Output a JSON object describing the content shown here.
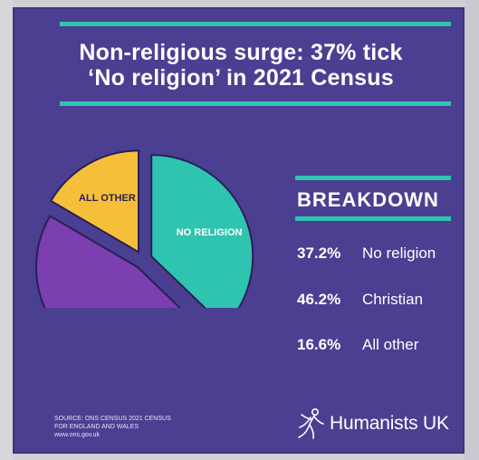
{
  "title_line1": "Non-religious surge: 37% tick",
  "title_line2": "‘No religion’ in 2021 Census",
  "colors": {
    "background": "#4b3f92",
    "accent": "#2ec4b0",
    "no_religion": "#2ec4b0",
    "christian": "#7b3fb0",
    "all_other": "#f5bf3a"
  },
  "chart_data": {
    "type": "pie",
    "title": "Non-religious surge: 37% tick ‘No religion’ in 2021 Census",
    "slices": [
      {
        "label": "NO RELIGION",
        "value": 37.2,
        "color": "#2ec4b0"
      },
      {
        "label": "CHRISTIAN",
        "value": 46.2,
        "color": "#7b3fb0"
      },
      {
        "label": "ALL OTHER",
        "value": 16.6,
        "color": "#f5bf3a"
      }
    ]
  },
  "breakdown": {
    "heading": "BREAKDOWN",
    "rows": [
      {
        "pct": "37.2%",
        "label": "No religion"
      },
      {
        "pct": "46.2%",
        "label": "Christian"
      },
      {
        "pct": "16.6%",
        "label": "All other"
      }
    ]
  },
  "source": {
    "line1": "SOURCE: ONS CENSUS 2021 CENSUS",
    "line2": "FOR ENGLAND AND WALES",
    "line3": "www.ons.gov.uk"
  },
  "brand": {
    "name": "Humanists UK",
    "icon": "humanist-figure-icon"
  }
}
